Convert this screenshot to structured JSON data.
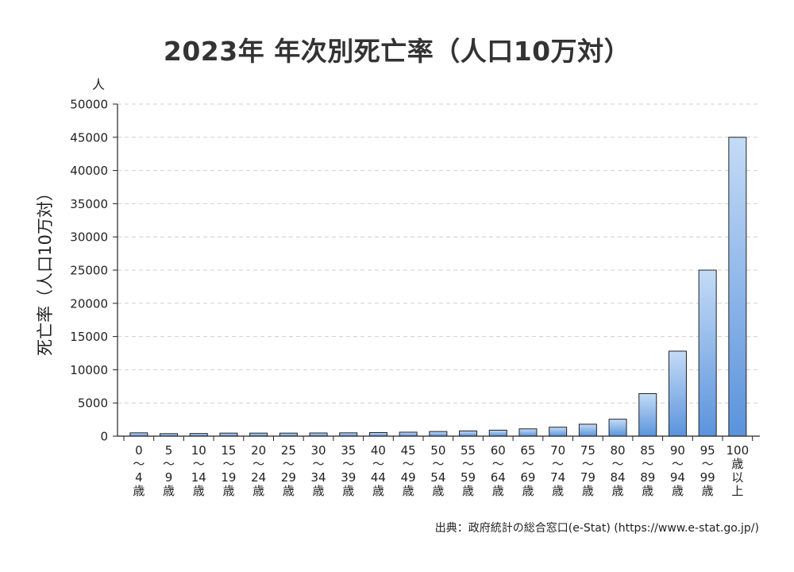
{
  "chart_data": {
    "type": "bar",
    "title": "2023年 年次別死亡率（人口10万対）",
    "ylabel": "死亡率（人口10万対）",
    "yunit": "人",
    "ylim": [
      0,
      50000
    ],
    "yticks": [
      0,
      5000,
      10000,
      15000,
      20000,
      25000,
      30000,
      35000,
      40000,
      45000,
      50000
    ],
    "grid": true,
    "categories": [
      [
        "0",
        "〜",
        "4",
        "歳"
      ],
      [
        "5",
        "〜",
        "9",
        "歳"
      ],
      [
        "10",
        "〜",
        "14",
        "歳"
      ],
      [
        "15",
        "〜",
        "19",
        "歳"
      ],
      [
        "20",
        "〜",
        "24",
        "歳"
      ],
      [
        "25",
        "〜",
        "29",
        "歳"
      ],
      [
        "30",
        "〜",
        "34",
        "歳"
      ],
      [
        "35",
        "〜",
        "39",
        "歳"
      ],
      [
        "40",
        "〜",
        "44",
        "歳"
      ],
      [
        "45",
        "〜",
        "49",
        "歳"
      ],
      [
        "50",
        "〜",
        "54",
        "歳"
      ],
      [
        "55",
        "〜",
        "59",
        "歳"
      ],
      [
        "60",
        "〜",
        "64",
        "歳"
      ],
      [
        "65",
        "〜",
        "69",
        "歳"
      ],
      [
        "70",
        "〜",
        "74",
        "歳"
      ],
      [
        "75",
        "〜",
        "79",
        "歳"
      ],
      [
        "80",
        "〜",
        "84",
        "歳"
      ],
      [
        "85",
        "〜",
        "89",
        "歳"
      ],
      [
        "90",
        "〜",
        "94",
        "歳"
      ],
      [
        "95",
        "〜",
        "99",
        "歳"
      ],
      [
        "100",
        "歳",
        "以",
        "上"
      ]
    ],
    "values": [
      500,
      380,
      400,
      460,
      460,
      460,
      480,
      500,
      540,
      600,
      700,
      780,
      900,
      1100,
      1350,
      1800,
      2550,
      6400,
      12800,
      25000,
      45000
    ],
    "bar_color_top": "#c4dbf6",
    "bar_color_bottom": "#5a93dc",
    "bar_stroke": "#222222"
  },
  "source": "出典：政府統計の総合窓口(e-Stat) (https://www.e-stat.go.jp/)"
}
